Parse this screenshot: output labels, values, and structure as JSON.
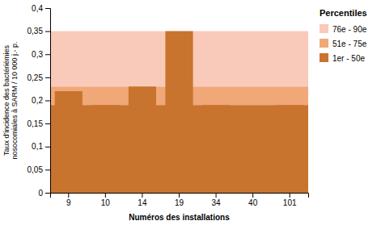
{
  "chart_data": {
    "type": "bar",
    "categories": [
      "9",
      "10",
      "14",
      "19",
      "34",
      "40",
      "101"
    ],
    "values": [
      0.22,
      0.19,
      0.23,
      0.35,
      0.19,
      0.16,
      0.19
    ],
    "color": "#C8742E",
    "xlabel": "Numéros des installations",
    "ylabel": "Taux d’incidence des bactériémies\nnosocomiales à SARM / 10 000 j.- p.",
    "ylim": [
      0,
      0.4
    ],
    "yticks": [
      0,
      {
        "value": 0.05,
        "label": "0,05"
      },
      {
        "value": 0.1,
        "label": "0,1"
      },
      {
        "value": 0.15,
        "label": "0,15"
      },
      {
        "value": 0.2,
        "label": "0,2"
      },
      {
        "value": 0.25,
        "label": "0,25"
      },
      {
        "value": 0.3,
        "label": "0,3"
      },
      {
        "value": 0.35,
        "label": "0,35"
      },
      {
        "value": 0.4,
        "label": "0,4"
      }
    ],
    "bands": [
      {
        "name": "76e - 90e",
        "bottom": 0.23,
        "top": 0.35,
        "color": "#F9CABA"
      },
      {
        "name": "51e - 75e",
        "bottom": 0.19,
        "top": 0.23,
        "color": "#F0A878"
      },
      {
        "name": "1er - 50e",
        "bottom": 0,
        "top": 0.19,
        "color": "#C8742E"
      }
    ],
    "legend_title": "Percentiles",
    "legend": "right",
    "grid": false
  }
}
